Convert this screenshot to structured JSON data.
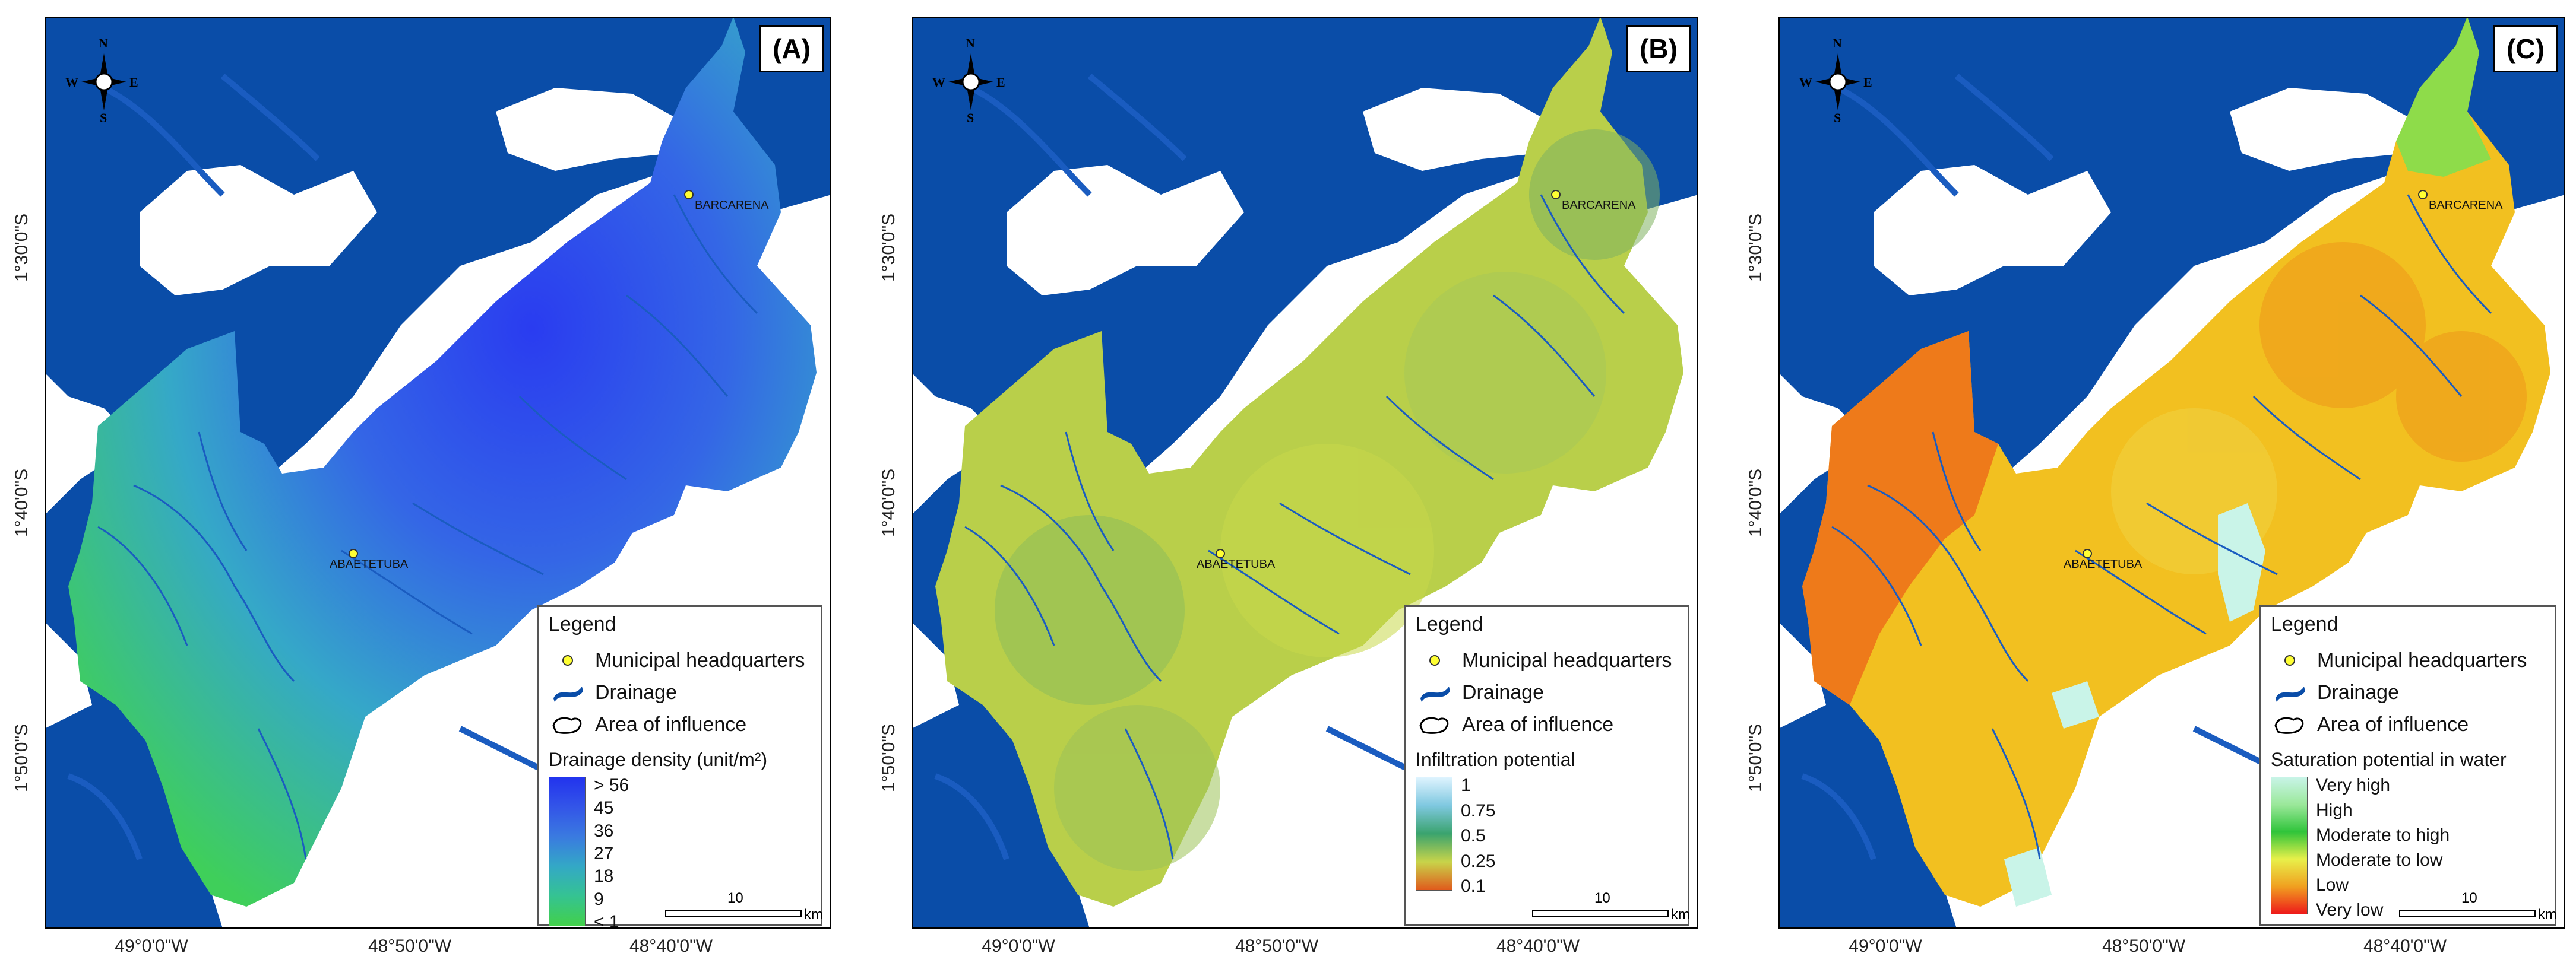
{
  "panels": [
    {
      "label": "(A)",
      "legend_title": "Legend",
      "legend_items": [
        "Municipal headquarters",
        "Drainage",
        "Area of influence"
      ],
      "ramp_title": "Drainage density (unit/m²)",
      "ramp_labels": [
        "> 56",
        "45",
        "36",
        "27",
        "18",
        "9",
        "< 1"
      ],
      "ramp_colors": [
        "#2233ee",
        "#3355e8",
        "#3a7ae0",
        "#33a8c6",
        "#35c392",
        "#3ed063",
        "#42d04a"
      ]
    },
    {
      "label": "(B)",
      "legend_title": "Legend",
      "legend_items": [
        "Municipal headquarters",
        "Drainage",
        "Area of influence"
      ],
      "ramp_title": "Infiltration potential",
      "ramp_labels": [
        "1",
        "0.75",
        "0.5",
        "0.25",
        "0.1"
      ],
      "ramp_colors": [
        "#dff4ff",
        "#7fc8e0",
        "#3aa36e",
        "#c8d44a",
        "#e05a1c"
      ]
    },
    {
      "label": "(C)",
      "legend_title": "Legend",
      "legend_items": [
        "Municipal headquarters",
        "Drainage",
        "Area of influence"
      ],
      "ramp_title": "Saturation potential in water",
      "ramp_labels": [
        "Very high",
        "High",
        "Moderate to high",
        "Moderate to low",
        "Low",
        "Very low"
      ],
      "ramp_colors": [
        "#c9f4e8",
        "#9be89a",
        "#2fc43a",
        "#e8f04a",
        "#f0a020",
        "#ee1a1a"
      ]
    }
  ],
  "towns": [
    "BARCARENA",
    "ABAETETUBA"
  ],
  "lat_ticks": [
    "1°30'0\"S",
    "1°40'0\"S",
    "1°50'0\"S"
  ],
  "lon_ticks": [
    "49°0'0\"W",
    "48°50'0\"W",
    "48°40'0\"W"
  ],
  "scale": {
    "number": "10",
    "unit": "km"
  },
  "compass": {
    "n": "N",
    "s": "S",
    "e": "E",
    "w": "W"
  },
  "colors": {
    "water": "#0a4da8",
    "land": "#ffffff",
    "river": "#1a5cc0"
  }
}
